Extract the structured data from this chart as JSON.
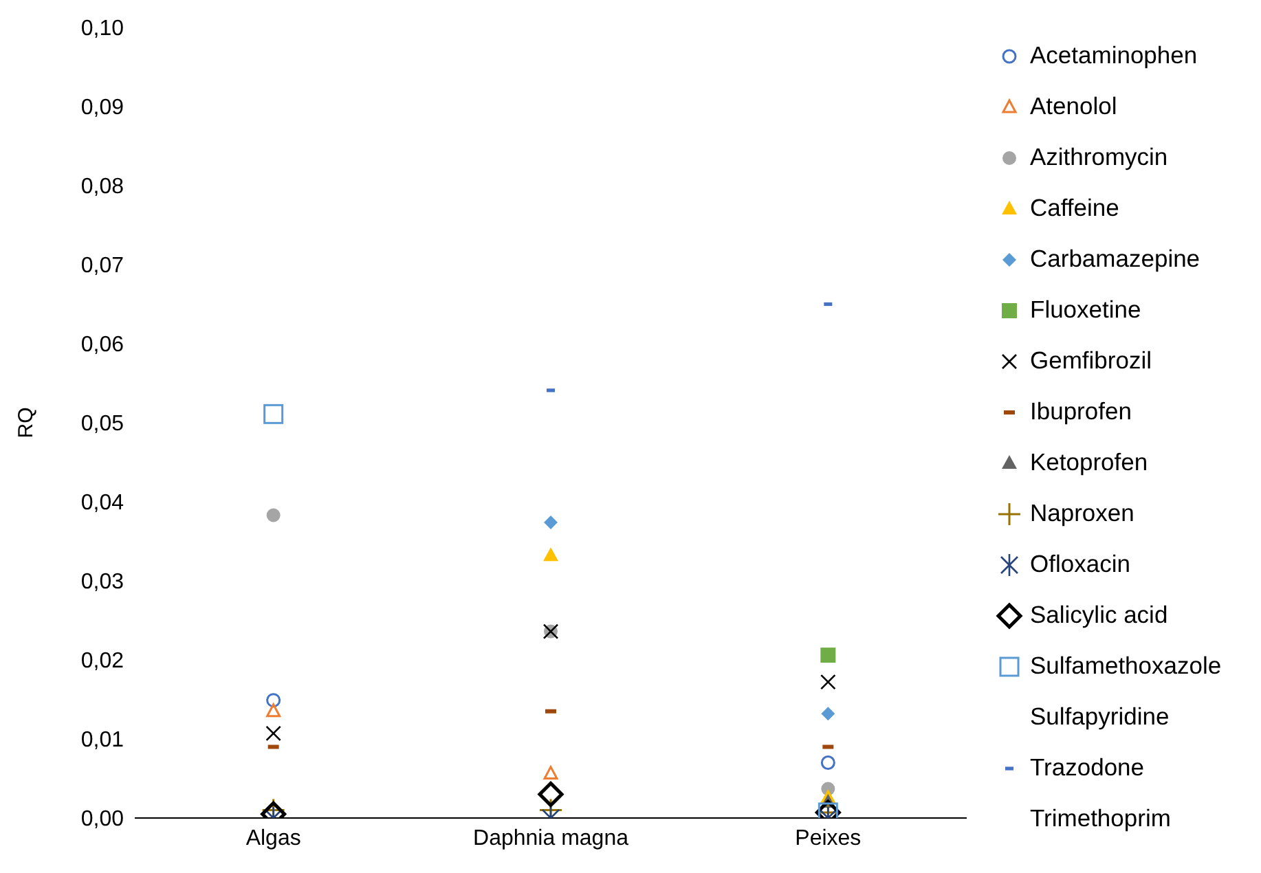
{
  "chart_data": {
    "type": "scatter",
    "ylabel": "RQ",
    "categories": [
      "Algas",
      "Daphnia magna",
      "Peixes"
    ],
    "ylim": [
      0,
      0.1
    ],
    "yticks": [
      {
        "value": 0,
        "label": "0,00"
      },
      {
        "value": 0.01,
        "label": "0,01"
      },
      {
        "value": 0.02,
        "label": "0,02"
      },
      {
        "value": 0.03,
        "label": "0,03"
      },
      {
        "value": 0.04,
        "label": "0,04"
      },
      {
        "value": 0.05,
        "label": "0,05"
      },
      {
        "value": 0.06,
        "label": "0,06"
      },
      {
        "value": 0.07,
        "label": "0,07"
      },
      {
        "value": 0.08,
        "label": "0,08"
      },
      {
        "value": 0.09,
        "label": "0,09"
      },
      {
        "value": 0.1,
        "label": "0,10"
      }
    ],
    "grid": false,
    "legend": "right",
    "series": [
      {
        "name": "Acetaminophen",
        "color": "#4472c4",
        "marker": "circle-open",
        "values": [
          0.0149,
          null,
          0.007
        ]
      },
      {
        "name": "Atenolol",
        "color": "#ed7d31",
        "marker": "triangle-open",
        "values": [
          0.0135,
          0.0056,
          null
        ]
      },
      {
        "name": "Azithromycin",
        "color": "#a5a5a5",
        "marker": "circle",
        "values": [
          0.0383,
          0.0236,
          0.0037
        ]
      },
      {
        "name": "Caffeine",
        "color": "#ffc000",
        "marker": "triangle",
        "values": [
          null,
          0.0332,
          0.0026
        ]
      },
      {
        "name": "Carbamazepine",
        "color": "#5b9bd5",
        "marker": "diamond",
        "values": [
          null,
          0.0374,
          0.0132
        ]
      },
      {
        "name": "Fluoxetine",
        "color": "#70ad47",
        "marker": "square",
        "values": [
          null,
          null,
          0.0206
        ]
      },
      {
        "name": "Gemfibrozil",
        "color": "#000000",
        "marker": "x",
        "values": [
          0.0107,
          0.0236,
          0.0172
        ]
      },
      {
        "name": "Ibuprofen",
        "color": "#9e480e",
        "marker": "square-flat",
        "values": [
          0.009,
          0.0135,
          0.009
        ]
      },
      {
        "name": "Ketoprofen",
        "color": "#636363",
        "marker": "triangle",
        "values": [
          null,
          null,
          0.002
        ]
      },
      {
        "name": "Naproxen",
        "color": "#997300",
        "marker": "plus",
        "values": [
          0.001,
          0.001,
          0.0007
        ]
      },
      {
        "name": "Ofloxacin",
        "color": "#264478",
        "marker": "cross-asterisk",
        "values": [
          0,
          0,
          0
        ]
      },
      {
        "name": "Salicylic acid",
        "color": "#000000",
        "marker": "diamond-open",
        "values": [
          0.0005,
          0.003,
          0.0007
        ]
      },
      {
        "name": "Sulfamethoxazole",
        "color": "#5b9bd5",
        "marker": "square-open",
        "values": [
          0.0511,
          null,
          0.0007
        ]
      },
      {
        "name": "Sulfapyridine",
        "marker": "none",
        "values": [
          null,
          null,
          null
        ]
      },
      {
        "name": "Trazodone",
        "color": "#4472c4",
        "marker": "square-flat-small",
        "values": [
          null,
          0.0541,
          0.065
        ]
      },
      {
        "name": "Trimethoprim",
        "marker": "none",
        "values": [
          null,
          null,
          null
        ]
      }
    ]
  }
}
